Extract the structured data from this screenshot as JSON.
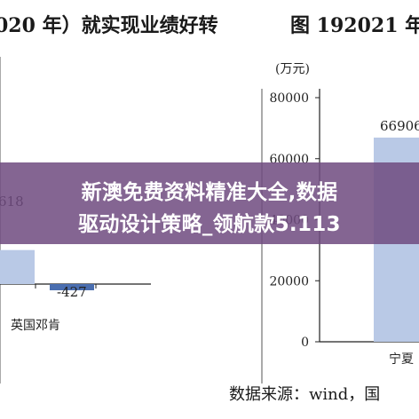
{
  "caption_left": "020 年）就实现业绩好转",
  "caption_right": "图 192021 年",
  "source_note": "数据来源：wind，国",
  "overlay": {
    "line1": "新澳免费资料精准大全,数据",
    "line2": "驱动设计策略_领航款5.113"
  },
  "colors": {
    "bar": "#b9c9e6",
    "negative_bar": "#4a6eb0",
    "overlay": "#704c80"
  },
  "chart_data": [
    {
      "type": "bar",
      "title": "",
      "categories": [
        "",
        "英国邓肯"
      ],
      "values": [
        618,
        -427
      ],
      "data_labels": [
        "618",
        "-427"
      ],
      "note": "left chart cropped at image edge"
    },
    {
      "type": "bar",
      "unit_label": "(万元)",
      "categories": [
        "宁夏"
      ],
      "values": [
        66906
      ],
      "data_labels": [
        "66906"
      ],
      "ylim": [
        0,
        80000
      ],
      "yticks": [
        "0",
        "20000",
        "40000",
        "60000",
        "80000"
      ]
    }
  ]
}
